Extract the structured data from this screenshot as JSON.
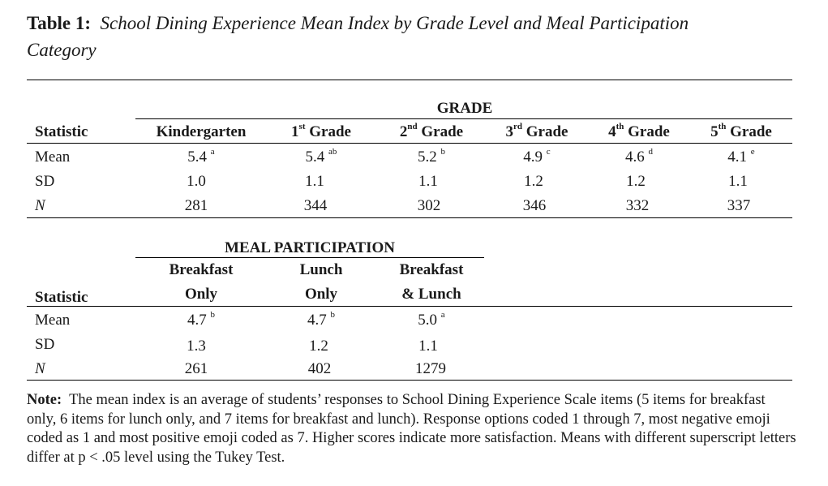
{
  "title": {
    "label": "Table 1:",
    "text": "School Dining Experience Mean Index by Grade Level and Meal Participation Category"
  },
  "table1": {
    "group_header": "GRADE",
    "stat_header": "Statistic",
    "columns": [
      {
        "label": "Kindergarten",
        "sup": ""
      },
      {
        "label": "1",
        "sup": "st",
        "suffix": " Grade"
      },
      {
        "label": "2",
        "sup": "nd",
        "suffix": " Grade"
      },
      {
        "label": "3",
        "sup": "rd",
        "suffix": " Grade"
      },
      {
        "label": "4",
        "sup": "th",
        "suffix": " Grade"
      },
      {
        "label": "5",
        "sup": "th",
        "suffix": " Grade"
      }
    ],
    "rows": [
      {
        "stat": "Mean",
        "values": [
          "5.4",
          "5.4",
          "5.2",
          "4.9",
          "4.6",
          "4.1"
        ],
        "sups": [
          "a",
          "ab",
          "b",
          "c",
          "d",
          "e"
        ]
      },
      {
        "stat": "SD",
        "values": [
          "1.0",
          "1.1",
          "1.1",
          "1.2",
          "1.2",
          "1.1"
        ]
      },
      {
        "stat": "N",
        "values": [
          "281",
          "344",
          "302",
          "346",
          "332",
          "337"
        ]
      }
    ]
  },
  "table2": {
    "group_header": "MEAL PARTICIPATION",
    "stat_header": "Statistic",
    "columns": [
      {
        "line1": "Breakfast",
        "line2": "Only"
      },
      {
        "line1": "Lunch",
        "line2": "Only"
      },
      {
        "line1": "Breakfast",
        "line2": "& Lunch"
      }
    ],
    "rows": [
      {
        "stat": "Mean",
        "values": [
          "4.7",
          "4.7",
          "5.0"
        ],
        "sups": [
          "b",
          "b",
          "a"
        ]
      },
      {
        "stat": "SD",
        "values": [
          "1.3",
          "1.2",
          "1.1"
        ]
      },
      {
        "stat": "N",
        "values": [
          "261",
          "402",
          "1279"
        ]
      }
    ]
  },
  "note": {
    "label": "Note:",
    "text": "The mean index is an average of students’ responses to School Dining Experience Scale items (5 items for breakfast only, 6 items for lunch only, and 7 items for breakfast and lunch). Response options coded 1 through 7, most negative emoji coded as 1 and most positive emoji coded as 7. Higher scores indicate more satisfaction. Means with different superscript letters differ at p < .05 level using the Tukey Test."
  }
}
